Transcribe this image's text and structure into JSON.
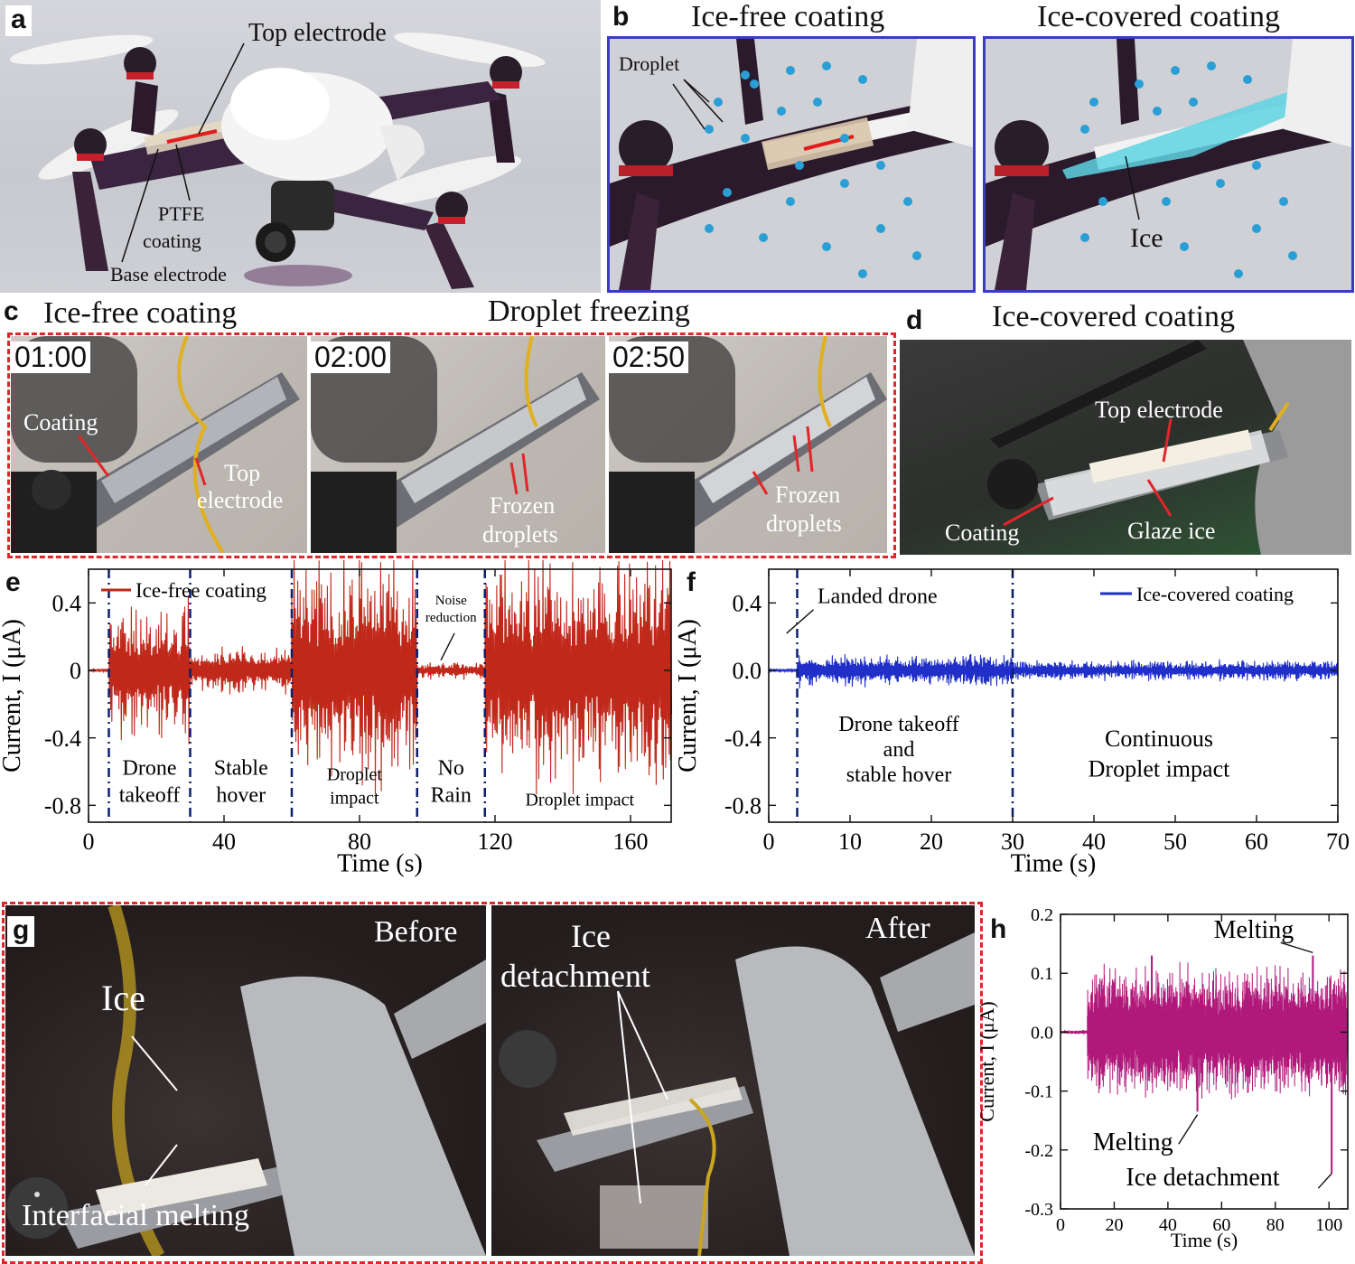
{
  "panel_a": {
    "letter": "a",
    "labels": {
      "top_electrode": "Top electrode",
      "ptfe_coating_line1": "PTFE",
      "ptfe_coating_line2": "coating",
      "base_electrode": "Base electrode"
    }
  },
  "panel_b": {
    "letter": "b",
    "left_title": "Ice-free coating",
    "right_title": "Ice-covered coating",
    "droplet_label": "Droplet",
    "ice_label": "Ice"
  },
  "panel_c": {
    "letter": "c",
    "title_left": "Ice-free coating",
    "title_right": "Droplet freezing",
    "frames": [
      {
        "time": "01:00"
      },
      {
        "time": "02:00"
      },
      {
        "time": "02:50"
      }
    ],
    "labels": {
      "coating": "Coating",
      "top_electrode_line1": "Top",
      "top_electrode_line2": "electrode",
      "frozen_line1": "Frozen",
      "frozen_line2": "droplets"
    }
  },
  "panel_d": {
    "letter": "d",
    "title": "Ice-covered coating",
    "labels": {
      "top_electrode": "Top electrode",
      "coating": "Coating",
      "glaze_ice": "Glaze ice"
    }
  },
  "panel_g": {
    "letter": "g",
    "before": "Before",
    "after": "After",
    "ice": "Ice",
    "interfacial_melting": "Interfacial melting",
    "ice_detachment_line1": "Ice",
    "ice_detachment_line2": "detachment"
  },
  "chart_data": [
    {
      "panel": "e",
      "type": "line",
      "xlabel": "Time (s)",
      "ylabel": "Current, I (μA)",
      "xlim": [
        0,
        172
      ],
      "ylim": [
        -0.9,
        0.6
      ],
      "xticks": [
        0,
        40,
        80,
        120,
        160
      ],
      "yticks": [
        -0.8,
        -0.4,
        0,
        0.4
      ],
      "ytick_labels": [
        "-0.8",
        "-0.4",
        "0",
        "0.4"
      ],
      "series": [
        {
          "name": "Ice-free coating",
          "color": "#c0281a"
        }
      ],
      "segments": [
        {
          "x_start": 0,
          "x_end": 6,
          "amplitude": 0.01
        },
        {
          "x_start": 6,
          "x_end": 30,
          "amplitude": 0.45
        },
        {
          "x_start": 30,
          "x_end": 60,
          "amplitude": 0.16
        },
        {
          "x_start": 60,
          "x_end": 97,
          "amplitude": 0.78
        },
        {
          "x_start": 97,
          "x_end": 117,
          "amplitude": 0.06
        },
        {
          "x_start": 117,
          "x_end": 172,
          "amplitude": 0.8
        }
      ],
      "dividers": [
        6,
        30,
        60,
        97,
        117
      ],
      "annotations": {
        "drone_takeoff": [
          "Drone",
          "takeoff"
        ],
        "stable_hover": [
          "Stable",
          "hover"
        ],
        "droplet_impact_1": [
          "Droplet",
          "impact"
        ],
        "no_rain": [
          "No",
          "Rain"
        ],
        "droplet_impact_2": "Droplet impact",
        "noise_reduction": [
          "Noise",
          "reduction"
        ]
      },
      "legend_position": "top-left"
    },
    {
      "panel": "f",
      "type": "line",
      "xlabel": "Time (s)",
      "ylabel": "Current, I (μA)",
      "xlim": [
        0,
        70
      ],
      "ylim": [
        -0.9,
        0.6
      ],
      "xticks": [
        0,
        10,
        20,
        30,
        40,
        50,
        60,
        70
      ],
      "yticks": [
        -0.8,
        -0.4,
        0,
        0.4
      ],
      "ytick_labels": [
        "-0.8",
        "-0.4",
        "0.0",
        "0.4"
      ],
      "series": [
        {
          "name": "Ice-covered coating",
          "color": "#1f2fc8"
        }
      ],
      "segments": [
        {
          "x_start": 0,
          "x_end": 3.5,
          "amplitude": 0.01
        },
        {
          "x_start": 3.5,
          "x_end": 30,
          "amplitude": 0.11
        },
        {
          "x_start": 30,
          "x_end": 70,
          "amplitude": 0.07
        }
      ],
      "dividers": [
        3.5,
        30
      ],
      "annotations": {
        "landed_drone": "Landed drone",
        "takeoff_hover": [
          "Drone takeoff",
          "and",
          "stable hover"
        ],
        "continuous": [
          "Continuous",
          "Droplet impact"
        ]
      },
      "legend_position": "top-right"
    },
    {
      "panel": "h",
      "type": "line",
      "xlabel": "Time (s)",
      "ylabel": "Current, I (μA)",
      "xlim": [
        0,
        107
      ],
      "ylim": [
        -0.3,
        0.2
      ],
      "xticks": [
        0,
        20,
        40,
        60,
        80,
        100
      ],
      "yticks": [
        -0.3,
        -0.2,
        -0.1,
        0.0,
        0.1,
        0.2
      ],
      "ytick_labels": [
        "-0.3",
        "-0.2",
        "-0.1",
        "0.0",
        "0.1",
        "0.2"
      ],
      "series": [
        {
          "name": "",
          "color": "#b0197a"
        }
      ],
      "segments": [
        {
          "x_start": 0,
          "x_end": 10,
          "amplitude": 0.004
        },
        {
          "x_start": 10,
          "x_end": 107,
          "amplitude": 0.12
        }
      ],
      "spikes": [
        {
          "x": 34,
          "y": 0.13
        },
        {
          "x": 51,
          "y": -0.135
        },
        {
          "x": 94,
          "y": 0.13
        },
        {
          "x": 101,
          "y": -0.24
        }
      ],
      "annotations": {
        "melting_top": "Melting",
        "melting_bottom": "Melting",
        "ice_detachment": "Ice detachment"
      }
    }
  ]
}
